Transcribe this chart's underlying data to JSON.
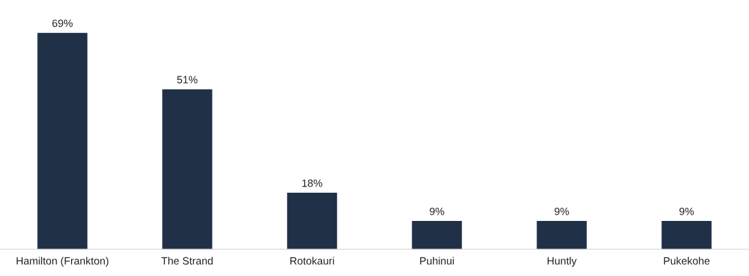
{
  "chart_data": {
    "type": "bar",
    "categories": [
      "Hamilton (Frankton)",
      "The Strand",
      "Rotokauri",
      "Puhinui",
      "Huntly",
      "Pukekohe"
    ],
    "values": [
      69,
      51,
      18,
      9,
      9,
      9
    ],
    "value_labels": [
      "69%",
      "51%",
      "18%",
      "9%",
      "9%",
      "9%"
    ],
    "color": "#203047"
  }
}
